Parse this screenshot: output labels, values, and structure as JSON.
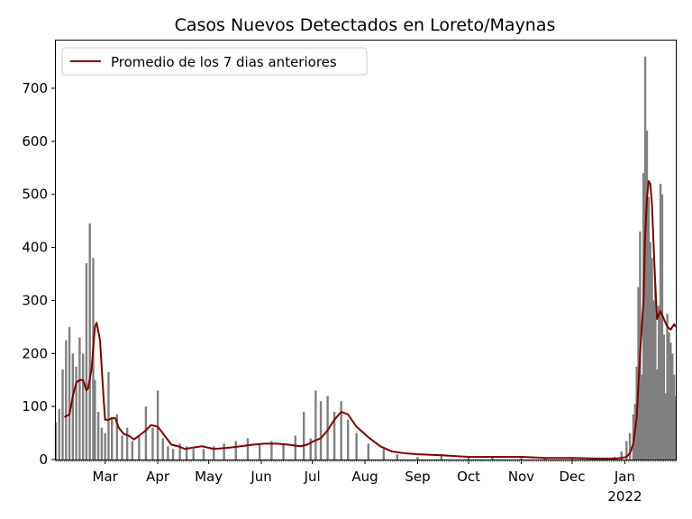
{
  "chart_data": {
    "type": "bar",
    "title": "Casos Nuevos Detectados en Loreto/Maynas",
    "xlabel": "",
    "ylabel": "",
    "ylim": [
      0,
      790
    ],
    "x_range": [
      "2021-01-31",
      "2022-01-31"
    ],
    "grid": false,
    "legend": {
      "position": "top-left",
      "entries": [
        "Promedio de los 7 dias anteriores"
      ]
    },
    "colors": {
      "bars": "#808080",
      "line": "#800000",
      "axes": "#000000",
      "background": "#ffffff"
    },
    "y_ticks": [
      0,
      100,
      200,
      300,
      400,
      500,
      600,
      700
    ],
    "x_ticks": [
      {
        "date": "2021-03-01",
        "label": "Mar",
        "sub": ""
      },
      {
        "date": "2021-04-01",
        "label": "Apr",
        "sub": ""
      },
      {
        "date": "2021-05-01",
        "label": "May",
        "sub": ""
      },
      {
        "date": "2021-06-01",
        "label": "Jun",
        "sub": ""
      },
      {
        "date": "2021-07-01",
        "label": "Jul",
        "sub": ""
      },
      {
        "date": "2021-08-01",
        "label": "Aug",
        "sub": ""
      },
      {
        "date": "2021-09-01",
        "label": "Sep",
        "sub": ""
      },
      {
        "date": "2021-10-01",
        "label": "Oct",
        "sub": ""
      },
      {
        "date": "2021-11-01",
        "label": "Nov",
        "sub": ""
      },
      {
        "date": "2021-12-01",
        "label": "Dec",
        "sub": ""
      },
      {
        "date": "2022-01-01",
        "label": "Jan",
        "sub": "2022"
      }
    ],
    "series": [
      {
        "kind": "bar",
        "unit": "daily",
        "x": [
          "2021-01-31",
          "2021-02-02",
          "2021-02-04",
          "2021-02-06",
          "2021-02-08",
          "2021-02-10",
          "2021-02-12",
          "2021-02-14",
          "2021-02-16",
          "2021-02-18",
          "2021-02-20",
          "2021-02-22",
          "2021-02-23",
          "2021-02-25",
          "2021-02-27",
          "2021-03-01",
          "2021-03-03",
          "2021-03-05",
          "2021-03-08",
          "2021-03-11",
          "2021-03-14",
          "2021-03-17",
          "2021-03-21",
          "2021-03-25",
          "2021-03-29",
          "2021-04-01",
          "2021-04-04",
          "2021-04-07",
          "2021-04-10",
          "2021-04-14",
          "2021-04-18",
          "2021-04-22",
          "2021-04-28",
          "2021-05-04",
          "2021-05-10",
          "2021-05-17",
          "2021-05-24",
          "2021-05-31",
          "2021-06-07",
          "2021-06-14",
          "2021-06-21",
          "2021-06-26",
          "2021-06-30",
          "2021-07-03",
          "2021-07-06",
          "2021-07-10",
          "2021-07-14",
          "2021-07-18",
          "2021-07-22",
          "2021-07-27",
          "2021-08-03",
          "2021-08-12",
          "2021-08-20",
          "2021-09-01",
          "2021-09-15",
          "2021-10-01",
          "2021-10-15",
          "2021-11-01",
          "2021-11-15",
          "2021-12-01",
          "2021-12-15",
          "2021-12-26",
          "2021-12-30",
          "2022-01-02",
          "2022-01-04",
          "2022-01-06",
          "2022-01-07",
          "2022-01-08",
          "2022-01-09",
          "2022-01-10",
          "2022-01-11",
          "2022-01-12",
          "2022-01-13",
          "2022-01-14",
          "2022-01-15",
          "2022-01-16",
          "2022-01-17",
          "2022-01-18",
          "2022-01-19",
          "2022-01-20",
          "2022-01-21",
          "2022-01-22",
          "2022-01-23",
          "2022-01-24",
          "2022-01-25",
          "2022-01-26",
          "2022-01-27",
          "2022-01-28",
          "2022-01-29",
          "2022-01-30",
          "2022-01-31"
        ],
        "values": [
          70,
          95,
          170,
          225,
          250,
          200,
          175,
          230,
          200,
          370,
          445,
          380,
          150,
          90,
          60,
          50,
          165,
          80,
          85,
          45,
          60,
          35,
          45,
          100,
          60,
          130,
          40,
          25,
          20,
          30,
          25,
          20,
          20,
          25,
          30,
          35,
          40,
          30,
          35,
          30,
          45,
          90,
          40,
          130,
          110,
          120,
          90,
          110,
          75,
          50,
          30,
          20,
          10,
          5,
          10,
          5,
          5,
          3,
          3,
          2,
          2,
          5,
          15,
          35,
          50,
          85,
          105,
          175,
          325,
          430,
          160,
          540,
          760,
          620,
          495,
          410,
          380,
          300,
          330,
          170,
          290,
          520,
          500,
          235,
          125,
          275,
          240,
          220,
          200,
          160,
          120
        ]
      },
      {
        "kind": "line",
        "name": "Promedio de los 7 dias anteriores",
        "x": [
          "2021-02-05",
          "2021-02-08",
          "2021-02-10",
          "2021-02-12",
          "2021-02-14",
          "2021-02-16",
          "2021-02-18",
          "2021-02-19",
          "2021-02-21",
          "2021-02-23",
          "2021-02-24",
          "2021-02-26",
          "2021-02-28",
          "2021-03-01",
          "2021-03-03",
          "2021-03-05",
          "2021-03-07",
          "2021-03-09",
          "2021-03-12",
          "2021-03-15",
          "2021-03-18",
          "2021-03-21",
          "2021-03-25",
          "2021-03-28",
          "2021-04-01",
          "2021-04-05",
          "2021-04-09",
          "2021-04-13",
          "2021-04-17",
          "2021-04-21",
          "2021-04-27",
          "2021-05-04",
          "2021-05-12",
          "2021-05-20",
          "2021-05-27",
          "2021-06-03",
          "2021-06-10",
          "2021-06-17",
          "2021-06-24",
          "2021-06-28",
          "2021-07-02",
          "2021-07-06",
          "2021-07-10",
          "2021-07-14",
          "2021-07-18",
          "2021-07-22",
          "2021-07-27",
          "2021-08-03",
          "2021-08-10",
          "2021-08-17",
          "2021-08-24",
          "2021-09-01",
          "2021-09-15",
          "2021-10-01",
          "2021-10-15",
          "2021-11-01",
          "2021-11-15",
          "2021-12-01",
          "2021-12-15",
          "2021-12-26",
          "2021-12-30",
          "2022-01-02",
          "2022-01-04",
          "2022-01-06",
          "2022-01-08",
          "2022-01-10",
          "2022-01-12",
          "2022-01-13",
          "2022-01-14",
          "2022-01-15",
          "2022-01-16",
          "2022-01-17",
          "2022-01-18",
          "2022-01-19",
          "2022-01-20",
          "2022-01-22",
          "2022-01-24",
          "2022-01-26",
          "2022-01-28",
          "2022-01-30",
          "2022-01-31"
        ],
        "values": [
          80,
          85,
          120,
          145,
          150,
          150,
          130,
          135,
          170,
          250,
          258,
          225,
          120,
          75,
          75,
          78,
          78,
          60,
          48,
          45,
          38,
          45,
          55,
          65,
          62,
          45,
          28,
          25,
          20,
          22,
          25,
          20,
          22,
          25,
          28,
          30,
          30,
          28,
          25,
          28,
          35,
          40,
          55,
          75,
          90,
          85,
          62,
          42,
          25,
          15,
          12,
          10,
          8,
          5,
          5,
          5,
          3,
          3,
          2,
          2,
          3,
          5,
          12,
          30,
          80,
          200,
          300,
          425,
          490,
          525,
          520,
          480,
          400,
          325,
          265,
          280,
          265,
          250,
          245,
          255,
          250
        ]
      }
    ]
  }
}
